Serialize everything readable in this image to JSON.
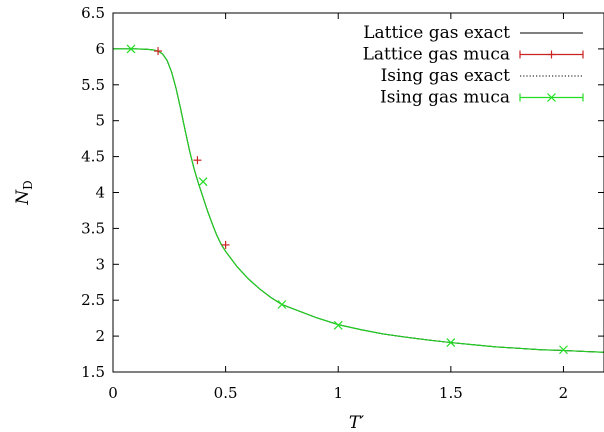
{
  "chart_data": {
    "type": "line",
    "title": "",
    "xlabel": "T′",
    "ylabel": {
      "main": "N",
      "sub": "D"
    },
    "xlim": [
      0,
      2.18
    ],
    "ylim": [
      1.5,
      6.5
    ],
    "xticks": [
      0,
      0.5,
      1,
      1.5,
      2
    ],
    "xtick_labels": [
      "0",
      "0.5",
      "1",
      "1.5",
      "2"
    ],
    "yticks": [
      1.5,
      2,
      2.5,
      3,
      3.5,
      4,
      4.5,
      5,
      5.5,
      6,
      6.5
    ],
    "ytick_labels": [
      "1.5",
      "2",
      "2.5",
      "3",
      "3.5",
      "4",
      "4.5",
      "5",
      "5.5",
      "6",
      "6.5"
    ],
    "grid": false,
    "legend_position": "top-right",
    "series": [
      {
        "name": "Lattice gas exact",
        "kind": "line",
        "style": "solid",
        "color": "#000000",
        "x": [
          0.0,
          0.05,
          0.1,
          0.15,
          0.18,
          0.2,
          0.22,
          0.24,
          0.26,
          0.28,
          0.3,
          0.32,
          0.34,
          0.36,
          0.38,
          0.4,
          0.42,
          0.44,
          0.46,
          0.48,
          0.5,
          0.55,
          0.6,
          0.65,
          0.7,
          0.75,
          0.8,
          0.9,
          1.0,
          1.1,
          1.2,
          1.3,
          1.4,
          1.5,
          1.6,
          1.7,
          1.8,
          1.9,
          2.0,
          2.1,
          2.18
        ],
        "y": [
          6.0,
          6.0,
          6.0,
          5.995,
          5.985,
          5.97,
          5.93,
          5.84,
          5.68,
          5.45,
          5.17,
          4.87,
          4.58,
          4.33,
          4.12,
          3.93,
          3.74,
          3.57,
          3.41,
          3.28,
          3.18,
          2.97,
          2.8,
          2.66,
          2.54,
          2.44,
          2.38,
          2.26,
          2.16,
          2.09,
          2.03,
          1.985,
          1.945,
          1.91,
          1.88,
          1.85,
          1.83,
          1.81,
          1.8,
          1.785,
          1.775
        ]
      },
      {
        "name": "Lattice gas muca",
        "kind": "points",
        "marker": "plus",
        "color": "#cc2222",
        "x": [
          0.2,
          0.375,
          0.5
        ],
        "y": [
          5.97,
          4.45,
          3.27
        ]
      },
      {
        "name": "Ising gas exact",
        "kind": "line",
        "style": "dotted",
        "color": "#000000",
        "x": [
          0.0,
          0.05,
          0.1,
          0.15,
          0.18,
          0.2,
          0.22,
          0.24,
          0.26,
          0.28,
          0.3,
          0.32,
          0.34,
          0.36,
          0.38,
          0.4,
          0.42,
          0.44,
          0.46,
          0.48,
          0.5,
          0.55,
          0.6,
          0.65,
          0.7,
          0.75,
          0.8,
          0.9,
          1.0,
          1.1,
          1.2,
          1.3,
          1.4,
          1.5,
          1.6,
          1.7,
          1.8,
          1.9,
          2.0,
          2.1,
          2.18
        ],
        "y": [
          6.0,
          6.0,
          6.0,
          5.995,
          5.985,
          5.97,
          5.93,
          5.84,
          5.68,
          5.45,
          5.17,
          4.87,
          4.58,
          4.33,
          4.12,
          3.93,
          3.74,
          3.57,
          3.41,
          3.28,
          3.18,
          2.97,
          2.8,
          2.66,
          2.54,
          2.44,
          2.38,
          2.26,
          2.16,
          2.09,
          2.03,
          1.985,
          1.945,
          1.91,
          1.88,
          1.85,
          1.83,
          1.81,
          1.8,
          1.785,
          1.775
        ]
      },
      {
        "name": "Ising gas muca",
        "kind": "points",
        "marker": "cross",
        "color": "#22dd22",
        "x": [
          0.08,
          0.4,
          0.75,
          1.0,
          1.5,
          2.0
        ],
        "y": [
          6.0,
          4.15,
          2.44,
          2.15,
          1.91,
          1.81
        ]
      }
    ],
    "overlay_curve": {
      "color": "#22cc22",
      "x": [
        0.0,
        0.05,
        0.1,
        0.15,
        0.18,
        0.2,
        0.22,
        0.24,
        0.26,
        0.28,
        0.3,
        0.32,
        0.34,
        0.36,
        0.38,
        0.4,
        0.42,
        0.44,
        0.46,
        0.48,
        0.5,
        0.55,
        0.6,
        0.65,
        0.7,
        0.75,
        0.8,
        0.9,
        1.0,
        1.1,
        1.2,
        1.3,
        1.4,
        1.5,
        1.6,
        1.7,
        1.8,
        1.9,
        2.0,
        2.1,
        2.18
      ],
      "y": [
        6.0,
        6.0,
        6.0,
        5.995,
        5.985,
        5.97,
        5.93,
        5.84,
        5.68,
        5.45,
        5.17,
        4.87,
        4.58,
        4.33,
        4.12,
        3.93,
        3.74,
        3.57,
        3.41,
        3.28,
        3.18,
        2.97,
        2.8,
        2.66,
        2.54,
        2.44,
        2.38,
        2.26,
        2.16,
        2.09,
        2.03,
        1.985,
        1.945,
        1.91,
        1.88,
        1.85,
        1.83,
        1.81,
        1.8,
        1.785,
        1.775
      ]
    }
  }
}
